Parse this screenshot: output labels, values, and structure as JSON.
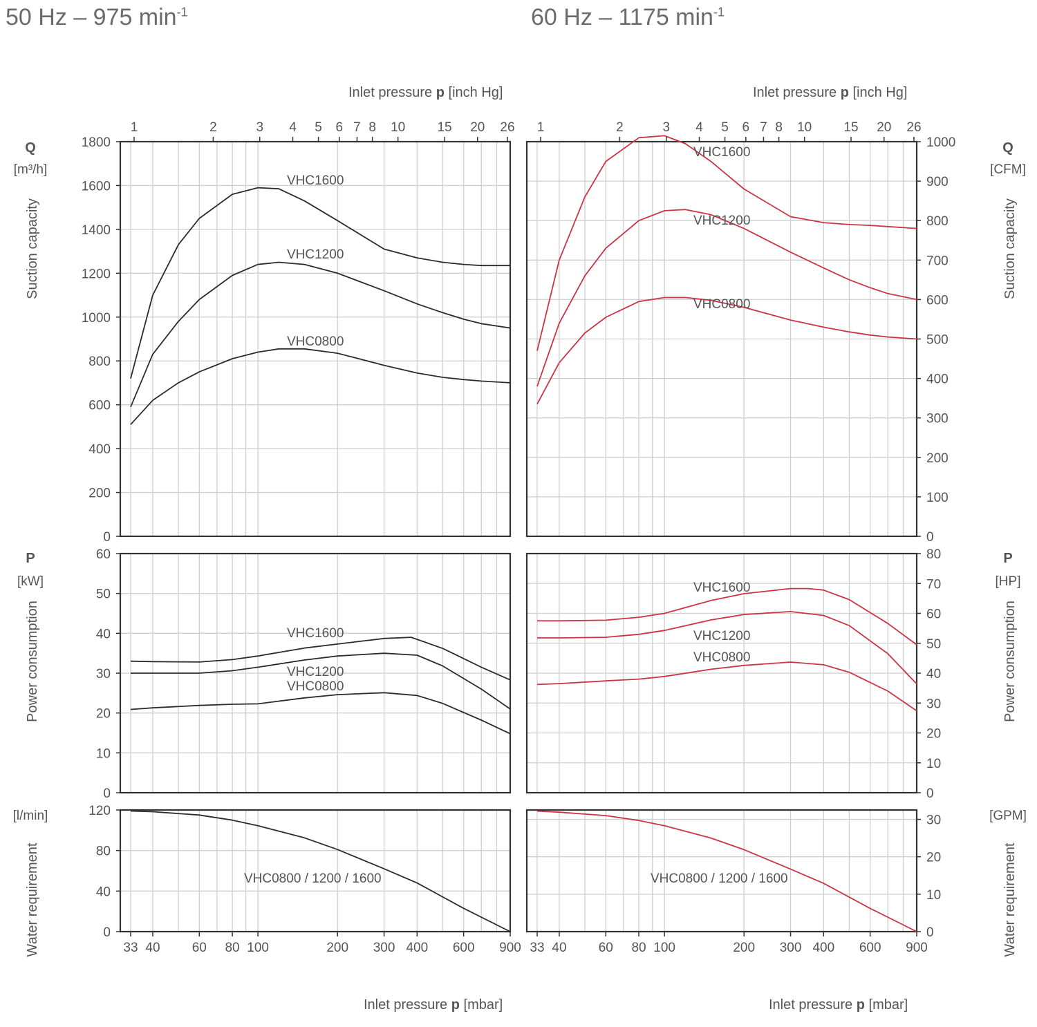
{
  "titles": {
    "left_prefix": "50 Hz – 975 min",
    "left_sup": "-1",
    "right_prefix": "60 Hz – 1175 min",
    "right_sup": "-1"
  },
  "colors": {
    "left_curves": "#2b2b2b",
    "right_curves": "#cc3344",
    "grid": "#cfcfcf",
    "frame": "#333333"
  },
  "axes": {
    "top_xlabel_text": "Inlet pressure ",
    "top_xlabel_bold": "p",
    "top_xlabel_unit": " [inch Hg]",
    "bottom_xlabel_text": "Inlet pressure ",
    "bottom_xlabel_bold": "p",
    "bottom_xlabel_unit": " [mbar]",
    "x_scale": "log",
    "x_range_mbar": [
      33,
      900
    ],
    "mbar_ticks": [
      "33",
      "40",
      "60",
      "80",
      "100",
      "200",
      "300",
      "400",
      "600",
      "900"
    ],
    "inhg_ticks": [
      "1",
      "2",
      "3",
      "4",
      "5",
      "6",
      "7",
      "8",
      "10",
      "15",
      "20",
      "26"
    ],
    "grid": true
  },
  "side_labels": {
    "left": {
      "q_symbol": "Q",
      "q_unit": "[m³/h]",
      "q_name": "Suction capacity",
      "p_symbol": "P",
      "p_unit": "[kW]",
      "p_name": "Power consumption",
      "w_unit": "[l/min]",
      "w_name": "Water requirement"
    },
    "right": {
      "q_symbol": "Q",
      "q_unit": "[CFM]",
      "q_name": "Suction capacity",
      "p_symbol": "P",
      "p_unit": "[HP]",
      "p_name": "Power consumption",
      "w_unit": "[GPM]",
      "w_name": "Water requirement"
    }
  },
  "chart_data": [
    {
      "id": "q50",
      "type": "line",
      "x_unit": "mbar",
      "y_unit": "m³/h",
      "ylim": [
        0,
        1800
      ],
      "yticks": [
        0,
        200,
        400,
        600,
        800,
        1000,
        1200,
        1400,
        1600,
        1800
      ],
      "series": [
        {
          "name": "VHC1600",
          "x": [
            33,
            40,
            50,
            60,
            80,
            100,
            120,
            150,
            200,
            300,
            400,
            500,
            600,
            700,
            900
          ],
          "y": [
            720,
            1100,
            1330,
            1450,
            1560,
            1590,
            1585,
            1530,
            1440,
            1310,
            1270,
            1250,
            1240,
            1235,
            1235
          ]
        },
        {
          "name": "VHC1200",
          "x": [
            33,
            40,
            50,
            60,
            80,
            100,
            120,
            150,
            200,
            300,
            400,
            500,
            600,
            700,
            900
          ],
          "y": [
            590,
            830,
            980,
            1080,
            1190,
            1240,
            1250,
            1240,
            1200,
            1120,
            1060,
            1020,
            990,
            970,
            950
          ]
        },
        {
          "name": "VHC0800",
          "x": [
            33,
            40,
            50,
            60,
            80,
            100,
            120,
            150,
            200,
            300,
            400,
            500,
            600,
            700,
            900
          ],
          "y": [
            510,
            620,
            700,
            750,
            810,
            840,
            855,
            855,
            835,
            780,
            745,
            725,
            715,
            708,
            700
          ]
        }
      ],
      "labels": [
        {
          "series": "VHC1600",
          "text": "VHC1600"
        },
        {
          "series": "VHC1200",
          "text": "VHC1200"
        },
        {
          "series": "VHC0800",
          "text": "VHC0800"
        }
      ]
    },
    {
      "id": "q60",
      "type": "line",
      "x_unit": "mbar",
      "y_unit": "CFM",
      "ylim": [
        0,
        1000
      ],
      "yticks": [
        0,
        100,
        200,
        300,
        400,
        500,
        600,
        700,
        800,
        900,
        1000
      ],
      "series": [
        {
          "name": "VHC1600",
          "x": [
            33,
            40,
            50,
            60,
            80,
            100,
            120,
            150,
            200,
            300,
            400,
            500,
            600,
            700,
            900
          ],
          "y": [
            470,
            700,
            860,
            950,
            1010,
            1015,
            995,
            950,
            880,
            810,
            795,
            790,
            788,
            785,
            780
          ]
        },
        {
          "name": "VHC1200",
          "x": [
            33,
            40,
            50,
            60,
            80,
            100,
            120,
            150,
            200,
            300,
            400,
            500,
            600,
            700,
            900
          ],
          "y": [
            380,
            540,
            660,
            730,
            800,
            825,
            828,
            815,
            780,
            720,
            680,
            650,
            630,
            615,
            600
          ]
        },
        {
          "name": "VHC0800",
          "x": [
            33,
            40,
            50,
            60,
            80,
            100,
            120,
            150,
            200,
            300,
            400,
            500,
            600,
            700,
            900
          ],
          "y": [
            335,
            440,
            515,
            555,
            595,
            605,
            605,
            598,
            580,
            548,
            530,
            518,
            510,
            505,
            500
          ]
        }
      ],
      "labels": [
        {
          "series": "VHC1600",
          "text": "VHC1600"
        },
        {
          "series": "VHC1200",
          "text": "VHC1200"
        },
        {
          "series": "VHC0800",
          "text": "VHC0800"
        }
      ]
    },
    {
      "id": "p50",
      "type": "line",
      "x_unit": "mbar",
      "y_unit": "kW",
      "ylim": [
        0,
        60
      ],
      "yticks": [
        0,
        10,
        20,
        30,
        40,
        50,
        60
      ],
      "series": [
        {
          "name": "VHC1600",
          "x": [
            33,
            40,
            60,
            80,
            100,
            150,
            200,
            300,
            380,
            500,
            700,
            900
          ],
          "y": [
            33,
            32.9,
            32.8,
            33.4,
            34.3,
            36.3,
            37.3,
            38.7,
            39,
            36.2,
            31.5,
            28.3
          ]
        },
        {
          "name": "VHC1200",
          "x": [
            33,
            40,
            60,
            80,
            100,
            150,
            200,
            300,
            400,
            500,
            700,
            900
          ],
          "y": [
            30,
            30,
            30,
            30.6,
            31.5,
            33.3,
            34.3,
            35,
            34.5,
            31.8,
            26,
            21
          ]
        },
        {
          "name": "VHC0800",
          "x": [
            33,
            40,
            60,
            80,
            100,
            150,
            200,
            300,
            400,
            500,
            700,
            900
          ],
          "y": [
            20.9,
            21.3,
            21.9,
            22.2,
            22.3,
            23.8,
            24.6,
            25.1,
            24.4,
            22.4,
            18.2,
            14.8
          ]
        }
      ],
      "labels": [
        {
          "series": "VHC1600",
          "text": "VHC1600"
        },
        {
          "series": "VHC1200",
          "text": "VHC1200"
        },
        {
          "series": "VHC0800",
          "text": "VHC0800"
        }
      ]
    },
    {
      "id": "p60",
      "type": "line",
      "x_unit": "mbar",
      "y_unit": "HP",
      "ylim": [
        0,
        80
      ],
      "yticks": [
        0,
        10,
        20,
        30,
        40,
        50,
        60,
        70,
        80
      ],
      "series": [
        {
          "name": "VHC1600",
          "x": [
            33,
            40,
            60,
            80,
            100,
            150,
            200,
            300,
            350,
            400,
            500,
            700,
            900
          ],
          "y": [
            57.5,
            57.5,
            57.7,
            58.7,
            60,
            64.3,
            66.6,
            68.3,
            68.3,
            67.8,
            64.6,
            56.6,
            49.5
          ]
        },
        {
          "name": "VHC1200",
          "x": [
            33,
            40,
            60,
            80,
            100,
            150,
            200,
            300,
            400,
            500,
            700,
            900
          ],
          "y": [
            51.8,
            51.8,
            52,
            53,
            54.3,
            57.8,
            59.6,
            60.6,
            59.3,
            55.9,
            46.5,
            36.4
          ]
        },
        {
          "name": "VHC0800",
          "x": [
            33,
            40,
            60,
            80,
            100,
            150,
            200,
            300,
            400,
            500,
            700,
            900
          ],
          "y": [
            36.2,
            36.5,
            37.4,
            38,
            38.9,
            41.3,
            42.6,
            43.7,
            42.8,
            40.3,
            34,
            27.4
          ]
        }
      ],
      "labels": [
        {
          "series": "VHC1600",
          "text": "VHC1600"
        },
        {
          "series": "VHC1200",
          "text": "VHC1200"
        },
        {
          "series": "VHC0800",
          "text": "VHC0800"
        }
      ]
    },
    {
      "id": "w50",
      "type": "line",
      "x_unit": "mbar",
      "y_unit": "l/min",
      "ylim": [
        0,
        120
      ],
      "yticks": [
        0,
        40,
        80,
        120
      ],
      "series": [
        {
          "name": "VHC0800 / 1200 / 1600",
          "x": [
            33,
            40,
            60,
            80,
            100,
            150,
            200,
            300,
            400,
            600,
            900
          ],
          "y": [
            119,
            118.3,
            115,
            110,
            104.5,
            92.5,
            81,
            62,
            48,
            23,
            0
          ]
        }
      ],
      "labels": [
        {
          "series": "VHC0800 / 1200 / 1600",
          "text": "VHC0800 / 1200 / 1600"
        }
      ]
    },
    {
      "id": "w60",
      "type": "line",
      "x_unit": "mbar",
      "y_unit": "GPM",
      "ylim": [
        0,
        32.5
      ],
      "yticks": [
        0,
        10,
        20,
        30
      ],
      "series": [
        {
          "name": "VHC0800 / 1200 / 1600",
          "x": [
            33,
            40,
            60,
            80,
            100,
            150,
            200,
            300,
            400,
            600,
            900
          ],
          "y": [
            32.2,
            31.9,
            31,
            29.7,
            28.3,
            25,
            21.9,
            16.7,
            12.9,
            6.2,
            0
          ]
        }
      ],
      "labels": [
        {
          "series": "VHC0800 / 1200 / 1600",
          "text": "VHC0800 / 1200 / 1600"
        }
      ]
    }
  ]
}
